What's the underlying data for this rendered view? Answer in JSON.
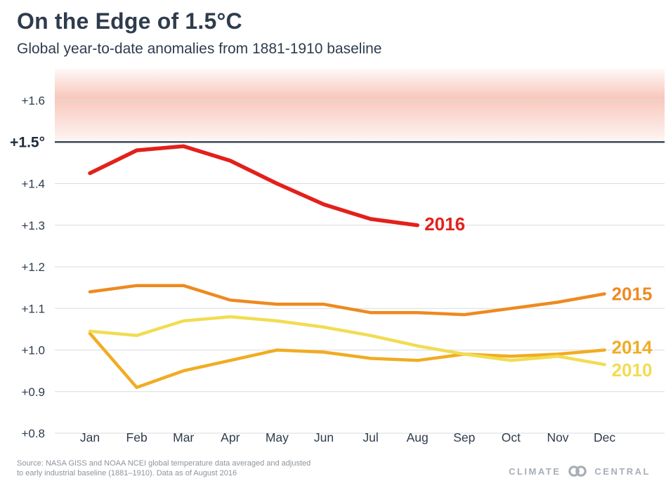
{
  "header": {
    "title": "On the Edge of 1.5°C",
    "subtitle": "Global year-to-date anomalies from 1881-1910 baseline"
  },
  "footer": {
    "source_line1": "Source: NASA GISS and NOAA NCEI global temperature data averaged and adjusted",
    "source_line2": "to early industrial baseline (1881–1910). Data as of August 2016",
    "brand_left": "CLIMATE",
    "brand_right": "CENTRAL"
  },
  "chart_data": {
    "type": "line",
    "title": "On the Edge of 1.5°C",
    "subtitle": "Global year-to-date anomalies from 1881-1910 baseline",
    "x": [
      "Jan",
      "Feb",
      "Mar",
      "Apr",
      "May",
      "Jun",
      "Jul",
      "Aug",
      "Sep",
      "Oct",
      "Nov",
      "Dec"
    ],
    "ylim": [
      0.8,
      1.67
    ],
    "grid": true,
    "legend_position": "line-end-labels",
    "yticks": [
      {
        "value": 1.6,
        "label": "+1.6",
        "major": false
      },
      {
        "value": 1.5,
        "label": "+1.5°",
        "major": true
      },
      {
        "value": 1.4,
        "label": "+1.4",
        "major": false
      },
      {
        "value": 1.3,
        "label": "+1.3",
        "major": false
      },
      {
        "value": 1.2,
        "label": "+1.2",
        "major": false
      },
      {
        "value": 1.1,
        "label": "+1.1",
        "major": false
      },
      {
        "value": 1.0,
        "label": "+1.0",
        "major": false
      },
      {
        "value": 0.9,
        "label": "+0.9",
        "major": false
      },
      {
        "value": 0.8,
        "label": "+0.8",
        "major": false
      }
    ],
    "threshold": {
      "value": 1.5,
      "line_color": "#2c3a49",
      "band_color": "#ef7b5f"
    },
    "series": [
      {
        "name": "2016",
        "color": "#e3201b",
        "width": 5.5,
        "label_dy": -2,
        "values": [
          1.425,
          1.48,
          1.49,
          1.455,
          1.4,
          1.35,
          1.315,
          1.3
        ]
      },
      {
        "name": "2015",
        "color": "#ee8a20",
        "width": 4.5,
        "label_dy": 0,
        "values": [
          1.14,
          1.155,
          1.155,
          1.12,
          1.11,
          1.11,
          1.09,
          1.09,
          1.085,
          1.1,
          1.115,
          1.135
        ]
      },
      {
        "name": "2014",
        "color": "#f0ac22",
        "width": 4.5,
        "label_dy": -4,
        "values": [
          1.04,
          0.91,
          0.95,
          0.975,
          1.0,
          0.995,
          0.98,
          0.975,
          0.99,
          0.985,
          0.99,
          1.0
        ]
      },
      {
        "name": "2010",
        "color": "#f2dc52",
        "width": 4.5,
        "label_dy": 8,
        "values": [
          1.045,
          1.035,
          1.07,
          1.08,
          1.07,
          1.055,
          1.035,
          1.01,
          0.99,
          0.975,
          0.985,
          0.965
        ]
      }
    ]
  }
}
